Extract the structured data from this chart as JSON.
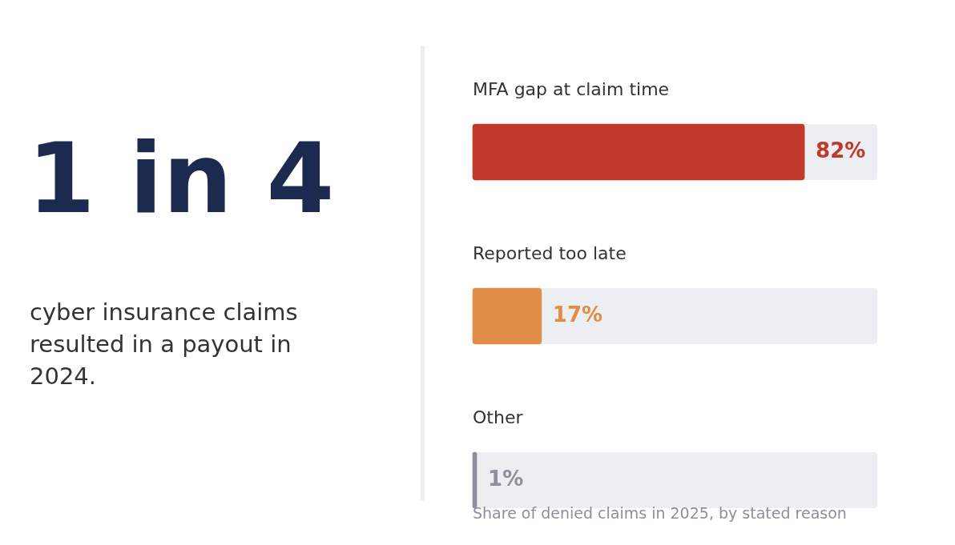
{
  "chart_data": [
    {
      "type": "other",
      "title": "1 in 4",
      "subtitle": "cyber insurance claims resulted in a payout in 2024."
    },
    {
      "type": "bar",
      "orientation": "horizontal",
      "categories": [
        "MFA gap at claim time",
        "Reported too late",
        "Other"
      ],
      "values": [
        82,
        17,
        1
      ],
      "colors": [
        "#c0392b",
        "#e08e47",
        "#8e8f9c"
      ],
      "value_labels": [
        "82%",
        "17%",
        "1%"
      ],
      "annotations": [
        "Share of denied claims in 2025, by stated reason"
      ]
    }
  ]
}
